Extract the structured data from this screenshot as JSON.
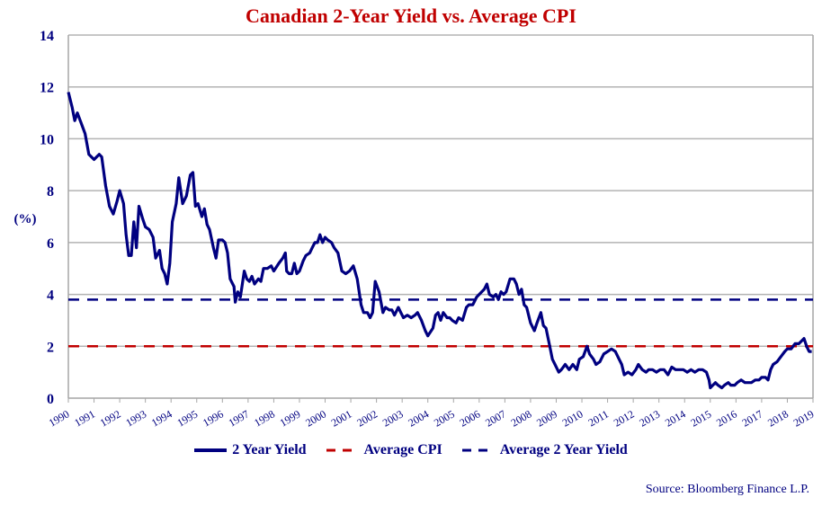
{
  "chart_data": {
    "type": "line",
    "title": "Canadian 2-Year Yield vs. Average CPI",
    "xlabel": "",
    "ylabel": "(%)",
    "ylim": [
      0,
      14
    ],
    "xlim": [
      1990,
      2019
    ],
    "y_ticks": [
      0,
      2,
      4,
      6,
      8,
      10,
      12,
      14
    ],
    "x_ticks": [
      "1990",
      "1991",
      "1992",
      "1993",
      "1994",
      "1995",
      "1996",
      "1997",
      "1998",
      "1999",
      "2000",
      "2001",
      "2002",
      "2003",
      "2004",
      "2005",
      "2006",
      "2007",
      "2008",
      "2009",
      "2010",
      "2011",
      "2012",
      "2013",
      "2014",
      "2015",
      "2016",
      "2017",
      "2018",
      "2019"
    ],
    "grid": true,
    "legend_position": "bottom",
    "values_estimated": true,
    "series": [
      {
        "name": "2 Year Yield",
        "color": "#000080",
        "style": "solid",
        "points": [
          [
            1990.0,
            11.8
          ],
          [
            1990.15,
            11.2
          ],
          [
            1990.25,
            10.7
          ],
          [
            1990.35,
            11.0
          ],
          [
            1990.5,
            10.6
          ],
          [
            1990.65,
            10.2
          ],
          [
            1990.8,
            9.4
          ],
          [
            1991.0,
            9.2
          ],
          [
            1991.2,
            9.4
          ],
          [
            1991.3,
            9.3
          ],
          [
            1991.45,
            8.2
          ],
          [
            1991.6,
            7.4
          ],
          [
            1991.75,
            7.1
          ],
          [
            1991.9,
            7.6
          ],
          [
            1992.0,
            8.0
          ],
          [
            1992.15,
            7.5
          ],
          [
            1992.25,
            6.3
          ],
          [
            1992.35,
            5.5
          ],
          [
            1992.45,
            5.5
          ],
          [
            1992.55,
            6.8
          ],
          [
            1992.65,
            5.8
          ],
          [
            1992.75,
            7.4
          ],
          [
            1992.9,
            6.9
          ],
          [
            1993.0,
            6.6
          ],
          [
            1993.15,
            6.5
          ],
          [
            1993.3,
            6.2
          ],
          [
            1993.4,
            5.4
          ],
          [
            1993.55,
            5.7
          ],
          [
            1993.65,
            5.0
          ],
          [
            1993.75,
            4.8
          ],
          [
            1993.85,
            4.4
          ],
          [
            1993.95,
            5.2
          ],
          [
            1994.05,
            6.8
          ],
          [
            1994.2,
            7.5
          ],
          [
            1994.3,
            8.5
          ],
          [
            1994.45,
            7.5
          ],
          [
            1994.6,
            7.8
          ],
          [
            1994.75,
            8.6
          ],
          [
            1994.85,
            8.7
          ],
          [
            1994.95,
            7.4
          ],
          [
            1995.05,
            7.5
          ],
          [
            1995.2,
            7.0
          ],
          [
            1995.3,
            7.3
          ],
          [
            1995.4,
            6.7
          ],
          [
            1995.5,
            6.5
          ],
          [
            1995.65,
            5.8
          ],
          [
            1995.75,
            5.4
          ],
          [
            1995.85,
            6.1
          ],
          [
            1996.0,
            6.1
          ],
          [
            1996.1,
            6.0
          ],
          [
            1996.2,
            5.6
          ],
          [
            1996.3,
            4.6
          ],
          [
            1996.45,
            4.3
          ],
          [
            1996.5,
            3.7
          ],
          [
            1996.6,
            4.1
          ],
          [
            1996.7,
            3.9
          ],
          [
            1996.85,
            4.9
          ],
          [
            1996.95,
            4.6
          ],
          [
            1997.05,
            4.5
          ],
          [
            1997.15,
            4.7
          ],
          [
            1997.25,
            4.4
          ],
          [
            1997.4,
            4.6
          ],
          [
            1997.5,
            4.5
          ],
          [
            1997.6,
            5.0
          ],
          [
            1997.75,
            5.0
          ],
          [
            1997.9,
            5.1
          ],
          [
            1998.0,
            4.9
          ],
          [
            1998.2,
            5.2
          ],
          [
            1998.35,
            5.4
          ],
          [
            1998.45,
            5.6
          ],
          [
            1998.5,
            4.9
          ],
          [
            1998.6,
            4.8
          ],
          [
            1998.7,
            4.8
          ],
          [
            1998.8,
            5.2
          ],
          [
            1998.9,
            4.8
          ],
          [
            1999.0,
            4.9
          ],
          [
            1999.15,
            5.3
          ],
          [
            1999.25,
            5.5
          ],
          [
            1999.4,
            5.6
          ],
          [
            1999.5,
            5.8
          ],
          [
            1999.6,
            6.0
          ],
          [
            1999.7,
            6.0
          ],
          [
            1999.8,
            6.3
          ],
          [
            1999.9,
            6.0
          ],
          [
            2000.0,
            6.2
          ],
          [
            2000.1,
            6.1
          ],
          [
            2000.25,
            6.0
          ],
          [
            2000.35,
            5.8
          ],
          [
            2000.5,
            5.6
          ],
          [
            2000.65,
            4.9
          ],
          [
            2000.8,
            4.8
          ],
          [
            2000.95,
            4.9
          ],
          [
            2001.1,
            5.1
          ],
          [
            2001.25,
            4.6
          ],
          [
            2001.4,
            3.6
          ],
          [
            2001.5,
            3.3
          ],
          [
            2001.65,
            3.3
          ],
          [
            2001.75,
            3.1
          ],
          [
            2001.85,
            3.3
          ],
          [
            2001.95,
            4.5
          ],
          [
            2002.1,
            4.1
          ],
          [
            2002.25,
            3.3
          ],
          [
            2002.35,
            3.5
          ],
          [
            2002.5,
            3.4
          ],
          [
            2002.6,
            3.4
          ],
          [
            2002.7,
            3.2
          ],
          [
            2002.85,
            3.5
          ],
          [
            2002.95,
            3.3
          ],
          [
            2003.05,
            3.1
          ],
          [
            2003.2,
            3.2
          ],
          [
            2003.35,
            3.1
          ],
          [
            2003.5,
            3.2
          ],
          [
            2003.6,
            3.3
          ],
          [
            2003.75,
            3.0
          ],
          [
            2003.9,
            2.6
          ],
          [
            2004.0,
            2.4
          ],
          [
            2004.2,
            2.7
          ],
          [
            2004.3,
            3.2
          ],
          [
            2004.4,
            3.3
          ],
          [
            2004.5,
            3.0
          ],
          [
            2004.6,
            3.3
          ],
          [
            2004.75,
            3.1
          ],
          [
            2004.85,
            3.1
          ],
          [
            2004.95,
            3.0
          ],
          [
            2005.1,
            2.9
          ],
          [
            2005.2,
            3.1
          ],
          [
            2005.35,
            3.0
          ],
          [
            2005.5,
            3.5
          ],
          [
            2005.6,
            3.6
          ],
          [
            2005.75,
            3.6
          ],
          [
            2005.9,
            3.9
          ],
          [
            2006.0,
            4.0
          ],
          [
            2006.2,
            4.2
          ],
          [
            2006.3,
            4.4
          ],
          [
            2006.4,
            4.0
          ],
          [
            2006.55,
            3.9
          ],
          [
            2006.65,
            4.0
          ],
          [
            2006.75,
            3.8
          ],
          [
            2006.85,
            4.1
          ],
          [
            2006.95,
            4.0
          ],
          [
            2007.05,
            4.1
          ],
          [
            2007.2,
            4.6
          ],
          [
            2007.35,
            4.6
          ],
          [
            2007.45,
            4.4
          ],
          [
            2007.55,
            4.0
          ],
          [
            2007.65,
            4.2
          ],
          [
            2007.75,
            3.6
          ],
          [
            2007.85,
            3.5
          ],
          [
            2008.0,
            2.9
          ],
          [
            2008.15,
            2.6
          ],
          [
            2008.25,
            2.9
          ],
          [
            2008.4,
            3.3
          ],
          [
            2008.5,
            2.8
          ],
          [
            2008.6,
            2.7
          ],
          [
            2008.75,
            2.0
          ],
          [
            2008.85,
            1.5
          ],
          [
            2008.95,
            1.3
          ],
          [
            2009.1,
            1.0
          ],
          [
            2009.2,
            1.1
          ],
          [
            2009.35,
            1.3
          ],
          [
            2009.5,
            1.1
          ],
          [
            2009.65,
            1.3
          ],
          [
            2009.8,
            1.1
          ],
          [
            2009.9,
            1.5
          ],
          [
            2010.05,
            1.6
          ],
          [
            2010.2,
            2.0
          ],
          [
            2010.3,
            1.7
          ],
          [
            2010.45,
            1.5
          ],
          [
            2010.55,
            1.3
          ],
          [
            2010.7,
            1.4
          ],
          [
            2010.85,
            1.7
          ],
          [
            2011.0,
            1.8
          ],
          [
            2011.15,
            1.9
          ],
          [
            2011.3,
            1.8
          ],
          [
            2011.45,
            1.5
          ],
          [
            2011.55,
            1.3
          ],
          [
            2011.65,
            0.9
          ],
          [
            2011.8,
            1.0
          ],
          [
            2011.95,
            0.9
          ],
          [
            2012.1,
            1.1
          ],
          [
            2012.2,
            1.3
          ],
          [
            2012.35,
            1.1
          ],
          [
            2012.5,
            1.0
          ],
          [
            2012.6,
            1.1
          ],
          [
            2012.75,
            1.1
          ],
          [
            2012.9,
            1.0
          ],
          [
            2013.05,
            1.1
          ],
          [
            2013.2,
            1.1
          ],
          [
            2013.35,
            0.9
          ],
          [
            2013.5,
            1.2
          ],
          [
            2013.65,
            1.1
          ],
          [
            2013.8,
            1.1
          ],
          [
            2013.95,
            1.1
          ],
          [
            2014.1,
            1.0
          ],
          [
            2014.25,
            1.1
          ],
          [
            2014.4,
            1.0
          ],
          [
            2014.55,
            1.1
          ],
          [
            2014.7,
            1.1
          ],
          [
            2014.85,
            1.0
          ],
          [
            2014.95,
            0.7
          ],
          [
            2015.0,
            0.4
          ],
          [
            2015.1,
            0.5
          ],
          [
            2015.2,
            0.6
          ],
          [
            2015.3,
            0.5
          ],
          [
            2015.45,
            0.4
          ],
          [
            2015.55,
            0.5
          ],
          [
            2015.7,
            0.6
          ],
          [
            2015.8,
            0.5
          ],
          [
            2015.95,
            0.5
          ],
          [
            2016.05,
            0.6
          ],
          [
            2016.2,
            0.7
          ],
          [
            2016.35,
            0.6
          ],
          [
            2016.45,
            0.6
          ],
          [
            2016.6,
            0.6
          ],
          [
            2016.75,
            0.7
          ],
          [
            2016.9,
            0.7
          ],
          [
            2017.0,
            0.8
          ],
          [
            2017.15,
            0.8
          ],
          [
            2017.25,
            0.7
          ],
          [
            2017.35,
            1.1
          ],
          [
            2017.45,
            1.3
          ],
          [
            2017.6,
            1.4
          ],
          [
            2017.75,
            1.6
          ],
          [
            2017.9,
            1.8
          ],
          [
            2018.0,
            1.9
          ],
          [
            2018.15,
            1.9
          ],
          [
            2018.3,
            2.1
          ],
          [
            2018.45,
            2.1
          ],
          [
            2018.55,
            2.2
          ],
          [
            2018.65,
            2.3
          ],
          [
            2018.75,
            2.0
          ],
          [
            2018.85,
            1.8
          ],
          [
            2018.95,
            1.8
          ]
        ]
      },
      {
        "name": "Average CPI",
        "color": "#c00000",
        "style": "dashed",
        "value": 2.0
      },
      {
        "name": "Average 2 Year Yield",
        "color": "#000080",
        "style": "dashed",
        "value": 3.8
      }
    ],
    "source": "Source: Bloomberg Finance L.P."
  }
}
